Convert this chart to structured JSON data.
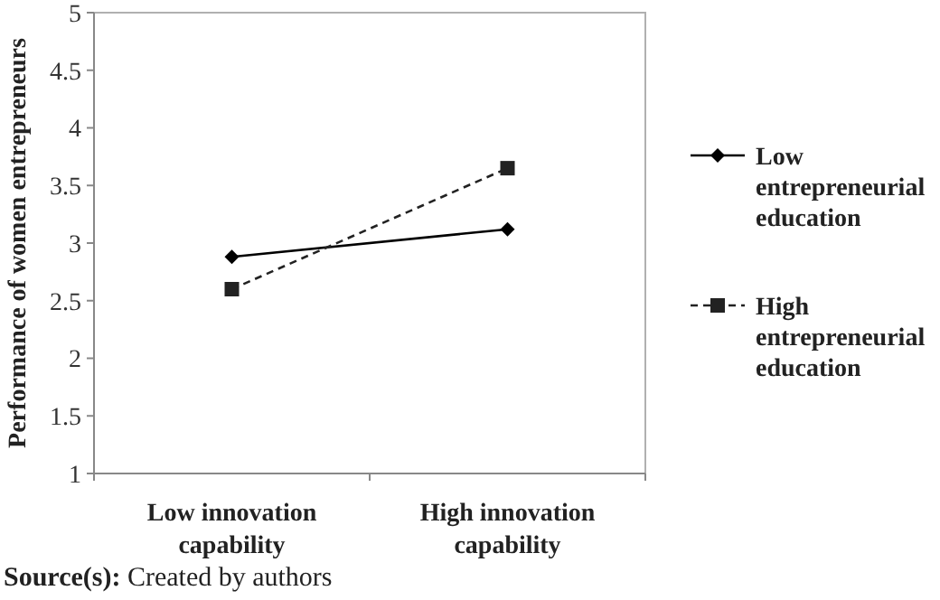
{
  "chart_data": {
    "type": "line",
    "ylabel": "Performance of women entrepreneurs",
    "categories": [
      "Low innovation capability",
      "High innovation capability"
    ],
    "series": [
      {
        "name": "Low entrepreneurial education",
        "color": "#000000",
        "values": [
          2.88,
          3.12
        ],
        "marker": "diamond",
        "line_style": "solid"
      },
      {
        "name": "High entrepreneurial education",
        "color": "#222222",
        "values": [
          2.6,
          3.65
        ],
        "marker": "square",
        "line_style": "dashed"
      }
    ],
    "ylim": [
      1,
      5
    ],
    "yticks": [
      1,
      1.5,
      2,
      2.5,
      3,
      3.5,
      4,
      4.5,
      5
    ],
    "grid": false,
    "legend": "right",
    "annotations": [
      "Source(s): Created by authors"
    ]
  }
}
